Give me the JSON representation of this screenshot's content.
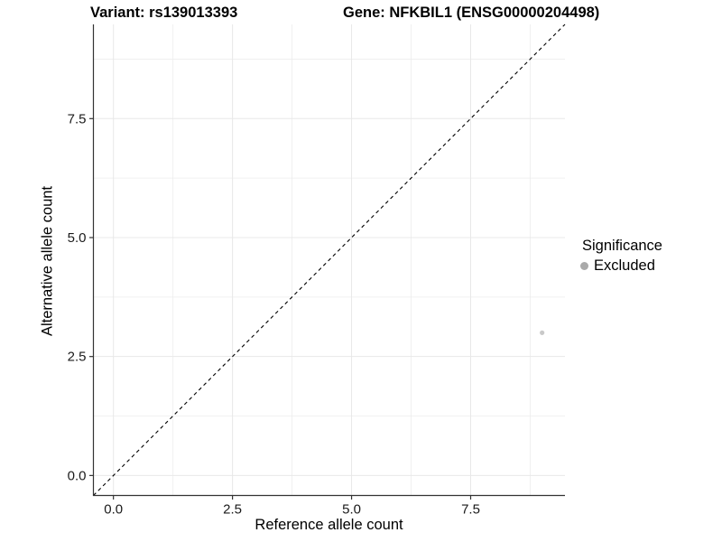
{
  "header": {
    "title_variant": "Variant: rs139013393",
    "title_gene": "Gene: NFKBIL1 (ENSG00000204498)"
  },
  "legend": {
    "title": "Significance",
    "items": [
      {
        "label": "Excluded",
        "color": "#aaaaaa"
      }
    ]
  },
  "chart_data": {
    "type": "scatter",
    "title": "Variant: rs139013393 — Gene: NFKBIL1 (ENSG00000204498)",
    "xlabel": "Reference allele count",
    "ylabel": "Alternative allele count",
    "xlim": [
      -0.42,
      9.48
    ],
    "ylim": [
      -0.42,
      9.48
    ],
    "x_ticks": {
      "values": [
        0,
        2.5,
        5,
        7.5
      ],
      "labels": [
        "0.0",
        "2.5",
        "5.0",
        "7.5"
      ]
    },
    "y_ticks": {
      "values": [
        0,
        2.5,
        5,
        7.5
      ],
      "labels": [
        "0.0",
        "2.5",
        "5.0",
        "7.5"
      ]
    },
    "grid": {
      "major": [
        0,
        2.5,
        5,
        7.5
      ],
      "minor": [
        1.25,
        3.75,
        6.25,
        8.75
      ],
      "major_color": "#e8e8e8",
      "minor_color": "#ededed"
    },
    "series": [
      {
        "name": "Excluded",
        "color": "#c9c9c9",
        "point_radius": 2.6,
        "points": [
          {
            "x": 9,
            "y": 3
          }
        ]
      }
    ],
    "reference_line": {
      "type": "identity",
      "slope": 1,
      "intercept": 0,
      "style": "dashed",
      "color": "#000000"
    },
    "legend_position": "right"
  },
  "style": {
    "axis_line_color": "#333333",
    "tick_color": "#333333",
    "tick_label_color": "#1a1a1a",
    "background": "#ffffff"
  }
}
